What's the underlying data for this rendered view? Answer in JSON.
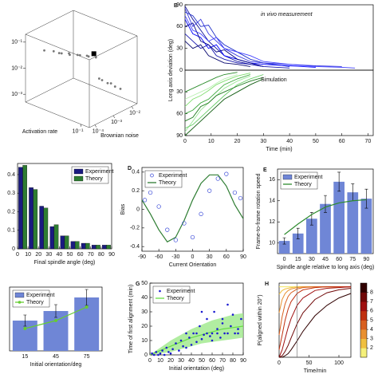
{
  "chart_data": [
    {
      "type": "scatter3d",
      "xlabel": "Activation rate",
      "ylabel": "Brownian noise",
      "xlim": [
        0.001,
        0.2
      ],
      "ylim": [
        5e-05,
        0.02
      ],
      "zlim": [
        0.0005,
        0.2
      ],
      "xticks": [
        {
          "value": 0.1,
          "label": "10⁻¹"
        }
      ],
      "yticks": [
        {
          "value": 0.0001,
          "label": "10⁻⁴"
        },
        {
          "value": 0.001,
          "label": "10⁻³"
        },
        {
          "value": 0.01,
          "label": "10⁻²"
        }
      ],
      "zticks": [
        {
          "value": 0.001,
          "label": "10⁻³"
        },
        {
          "value": 0.01,
          "label": "10⁻²"
        },
        {
          "value": 0.1,
          "label": "10⁻¹"
        }
      ],
      "series": [
        {
          "color": "#777777",
          "marker": "circle",
          "x": [
            0.003,
            0.005,
            0.008,
            0.012,
            0.02,
            0.03,
            0.005,
            0.008,
            0.012,
            0.02,
            0.03,
            0.03,
            0.05,
            0.08,
            0.1,
            0.05,
            0.08
          ],
          "y": [
            0.0001,
            0.00015,
            0.0002,
            0.0003,
            0.0005,
            0.0008,
            0.0003,
            0.0005,
            0.0008,
            0.0012,
            0.002,
            0.003,
            0.004,
            0.005,
            0.007,
            0.002,
            0.003
          ],
          "z": [
            0.06,
            0.06,
            0.055,
            0.05,
            0.05,
            0.045,
            0.04,
            0.04,
            0.035,
            0.035,
            0.03,
            0.004,
            0.003,
            0.0025,
            0.002,
            0.005,
            0.004
          ]
        },
        {
          "color": "#000000",
          "marker": "square",
          "x": [
            0.04
          ],
          "y": [
            0.001
          ],
          "z": [
            0.06
          ]
        }
      ]
    },
    {
      "type": "line",
      "panel": "B",
      "ylabel": "Long axis deviation (deg)",
      "annotation": "in vivo measurement",
      "x": [
        0,
        3,
        6,
        9,
        12,
        15,
        20,
        25,
        30,
        40,
        50,
        60,
        65
      ],
      "xlim": [
        0,
        72
      ],
      "ylim": [
        0,
        90
      ],
      "yticks": [
        0,
        30,
        60,
        90
      ],
      "series": [
        {
          "color": "#10109a",
          "values": [
            88,
            70,
            55,
            40,
            30,
            20,
            12,
            8,
            5,
            null,
            null,
            null,
            null
          ]
        },
        {
          "color": "#2030c8",
          "values": [
            80,
            75,
            60,
            62,
            45,
            35,
            25,
            15,
            10,
            5,
            null,
            null,
            null
          ]
        },
        {
          "color": "#0000ff",
          "values": [
            70,
            50,
            45,
            30,
            35,
            20,
            15,
            10,
            8,
            6,
            4,
            null,
            null
          ]
        },
        {
          "color": "#000080",
          "values": [
            60,
            65,
            40,
            35,
            25,
            28,
            15,
            10,
            5,
            null,
            null,
            null,
            null
          ]
        },
        {
          "color": "#3a3ae0",
          "values": [
            85,
            60,
            70,
            50,
            40,
            30,
            20,
            12,
            10,
            8,
            6,
            5,
            null
          ]
        },
        {
          "color": "#1818b0",
          "values": [
            50,
            40,
            30,
            35,
            20,
            15,
            10,
            8,
            5,
            3,
            null,
            null,
            null
          ]
        },
        {
          "color": "#4040ff",
          "values": [
            75,
            55,
            50,
            40,
            45,
            30,
            25,
            20,
            12,
            8,
            5,
            4,
            3
          ]
        },
        {
          "color": "#0a0a70",
          "values": [
            40,
            30,
            35,
            20,
            15,
            10,
            8,
            5,
            null,
            null,
            null,
            null,
            null
          ]
        }
      ]
    },
    {
      "type": "line",
      "xlabel": "Time (min)",
      "annotation": "Simulation",
      "x": [
        0,
        3,
        6,
        9,
        12,
        15,
        20,
        25,
        30,
        40,
        50,
        60,
        65
      ],
      "xlim": [
        0,
        72
      ],
      "ylim": [
        90,
        0
      ],
      "yticks": [
        30,
        60,
        90
      ],
      "xticks": [
        0,
        10,
        20,
        30,
        40,
        50,
        60,
        70
      ],
      "series": [
        {
          "color": "#9ee89a",
          "values": [
            85,
            70,
            55,
            45,
            35,
            25,
            15,
            8,
            null,
            null,
            null,
            null,
            null
          ]
        },
        {
          "color": "#66cc66",
          "values": [
            80,
            75,
            65,
            55,
            45,
            35,
            20,
            12,
            6,
            null,
            null,
            null,
            null
          ]
        },
        {
          "color": "#3aa83a",
          "values": [
            60,
            55,
            45,
            40,
            30,
            20,
            12,
            6,
            null,
            null,
            null,
            null,
            null
          ]
        },
        {
          "color": "#b8f0b0",
          "values": [
            40,
            35,
            30,
            25,
            18,
            12,
            6,
            null,
            null,
            null,
            null,
            null,
            null
          ]
        },
        {
          "color": "#1e7a1e",
          "values": [
            70,
            65,
            50,
            45,
            35,
            30,
            22,
            15,
            10,
            null,
            null,
            null,
            null
          ]
        },
        {
          "color": "#0f5a0f",
          "values": [
            90,
            80,
            70,
            60,
            50,
            40,
            30,
            20,
            12,
            null,
            null,
            null,
            null
          ]
        },
        {
          "color": "#80dd70",
          "values": [
            50,
            40,
            35,
            28,
            20,
            15,
            8,
            4,
            null,
            null,
            null,
            null,
            null
          ]
        },
        {
          "color": "#2c8c2c",
          "values": [
            30,
            25,
            20,
            15,
            10,
            6,
            3,
            null,
            null,
            null,
            null,
            null,
            null
          ]
        }
      ]
    },
    {
      "type": "grouped_bar",
      "xlabel": "Final spindle angle (deg)",
      "legend": "upper right",
      "x": [
        5,
        15,
        25,
        35,
        45,
        55,
        65,
        75,
        85
      ],
      "xlim": [
        0,
        90
      ],
      "xticks": [
        0,
        10,
        20,
        30,
        40,
        50,
        60,
        70,
        80,
        90
      ],
      "ylim": [
        0,
        0.46
      ],
      "yticks": [
        0,
        0.1,
        0.2,
        0.3,
        0.4
      ],
      "series": [
        {
          "name": "Experiment",
          "color": "#1a1a80",
          "values": [
            0.44,
            0.33,
            0.23,
            0.12,
            0.07,
            0.04,
            0.03,
            0.02,
            0.02
          ]
        },
        {
          "name": "Theory",
          "color": "#2e7d32",
          "values": [
            0.45,
            0.32,
            0.22,
            0.13,
            0.07,
            0.04,
            0.03,
            0.02,
            0.02
          ]
        }
      ]
    },
    {
      "type": "scatter_line",
      "panel": "D",
      "xlabel": "Current Orientation",
      "ylabel": "Bias",
      "legend": "upper left",
      "xlim": [
        -90,
        90
      ],
      "xticks": [
        -90,
        -60,
        -30,
        0,
        30,
        60,
        90
      ],
      "ylim": [
        -0.45,
        0.45
      ],
      "yticks": [
        -0.4,
        -0.2,
        0,
        0.2,
        0.4
      ],
      "series": [
        {
          "name": "Experiment",
          "color": "#3a4ad8",
          "x": [
            -85,
            -75,
            -60,
            -45,
            -30,
            -15,
            0,
            15,
            30,
            45,
            60,
            75,
            85
          ],
          "values": [
            0.1,
            0.18,
            0.03,
            -0.22,
            -0.33,
            -0.15,
            -0.3,
            -0.05,
            0.2,
            0.33,
            0.38,
            0.18,
            0.12
          ]
        },
        {
          "name": "Theory",
          "color": "#2e7d32",
          "x": [
            -90,
            -75,
            -60,
            -45,
            -30,
            -15,
            0,
            15,
            30,
            45,
            60,
            75,
            90
          ],
          "values": [
            0.1,
            -0.05,
            -0.22,
            -0.35,
            -0.3,
            -0.12,
            0.1,
            0.28,
            0.37,
            0.37,
            0.25,
            0.05,
            -0.1
          ]
        }
      ]
    },
    {
      "type": "bar_error_line",
      "panel": "E",
      "xlabel": "Spindle angle relative to long axis (deg)",
      "ylabel": "Frame-to-frame rotation speed",
      "legend": "upper left",
      "categories": [
        "0",
        "15",
        "30",
        "45",
        "60",
        "75",
        "90"
      ],
      "ylim": [
        9,
        17
      ],
      "yticks": [
        10,
        12,
        14,
        16
      ],
      "series": [
        {
          "name": "Experiment",
          "color": "#6f86d6",
          "values": [
            10.2,
            10.9,
            12.3,
            13.7,
            15.8,
            14.8,
            14.2
          ],
          "errors": [
            0.3,
            0.5,
            0.6,
            0.8,
            0.9,
            0.8,
            0.9
          ]
        },
        {
          "name": "Theory",
          "color": "#2e8b2e",
          "values": [
            10.8,
            11.8,
            12.7,
            13.4,
            13.8,
            14,
            14.1
          ]
        }
      ]
    },
    {
      "type": "bar_error_line",
      "xlabel": "Initial orientation/deg",
      "legend": "upper left",
      "categories": [
        "15",
        "45",
        "75"
      ],
      "ylim": [
        0,
        0.8
      ],
      "series": [
        {
          "name": "Experiment",
          "color": "#6f86d6",
          "values": [
            0.38,
            0.5,
            0.67
          ],
          "errors": [
            0.07,
            0.08,
            0.1
          ]
        },
        {
          "name": "Theory",
          "color": "#66cc33",
          "marker": "circle",
          "values": [
            0.28,
            0.38,
            0.55
          ]
        }
      ]
    },
    {
      "type": "scatter_band",
      "panel": "G",
      "xlabel": "Initial orientation (deg)",
      "ylabel": "Time of first alignment (min)",
      "legend": "upper left",
      "xlim": [
        0,
        90
      ],
      "xticks": [
        0,
        10,
        20,
        30,
        40,
        50,
        60,
        70,
        80,
        90
      ],
      "ylim": [
        0,
        50
      ],
      "yticks": [
        0,
        10,
        20,
        30,
        40,
        50
      ],
      "series": [
        {
          "name": "Experiment",
          "color": "#1a1ad0",
          "x": [
            2,
            4,
            6,
            8,
            10,
            12,
            14,
            16,
            18,
            20,
            22,
            25,
            28,
            30,
            32,
            35,
            38,
            40,
            42,
            45,
            48,
            50,
            52,
            55,
            58,
            60,
            62,
            65,
            68,
            70,
            72,
            75,
            78,
            80,
            82,
            85,
            88,
            35,
            45,
            55,
            65,
            75,
            85,
            30,
            50,
            70,
            60
          ],
          "values": [
            1,
            0,
            2,
            0,
            1,
            3,
            0,
            5,
            2,
            1,
            4,
            8,
            3,
            10,
            6,
            5,
            12,
            7,
            15,
            9,
            20,
            11,
            14,
            25,
            13,
            15,
            30,
            18,
            12,
            25,
            15,
            35,
            20,
            28,
            15,
            18,
            25,
            15,
            15,
            15,
            15,
            15,
            15,
            40,
            30,
            22,
            10
          ]
        },
        {
          "name": "Theory",
          "color": "#66dd44",
          "band_color": "#9ee88a",
          "x": [
            0,
            10,
            20,
            30,
            40,
            50,
            60,
            70,
            80,
            90
          ],
          "values": [
            0,
            3,
            6,
            9,
            12,
            14,
            16,
            18,
            19,
            20
          ],
          "lower": [
            0,
            1,
            2,
            4,
            6,
            8,
            9,
            10,
            11,
            12
          ],
          "upper": [
            0,
            5,
            10,
            14,
            18,
            21,
            24,
            26,
            28,
            29
          ]
        }
      ]
    },
    {
      "type": "curves",
      "panel": "H",
      "xlabel": "Time/min",
      "ylabel": "P(aligned within 20°)",
      "x": [
        0,
        5,
        10,
        15,
        20,
        30,
        40,
        60,
        80,
        100,
        120
      ],
      "xlim": [
        0,
        120
      ],
      "xticks": [
        0,
        50,
        100
      ],
      "ylim": [
        0,
        1
      ],
      "vline": 30,
      "colorbar": {
        "lim": [
          1,
          9
        ],
        "ticks": [
          2,
          3,
          4,
          5,
          6,
          7,
          8
        ],
        "colors": [
          "#f5f07a",
          "#f0c040",
          "#e89030",
          "#d86020",
          "#c03010",
          "#a01010",
          "#700808",
          "#300000"
        ]
      },
      "series": [
        {
          "color": "#f5e663",
          "values": [
            0.95,
            0.95,
            0.95,
            0.95,
            0.95,
            0.95,
            0.95,
            0.95,
            0.95,
            0.95,
            0.95
          ]
        },
        {
          "color": "#f0c040",
          "values": [
            0.85,
            0.9,
            0.92,
            0.93,
            0.94,
            0.95,
            0.95,
            0.95,
            0.95,
            0.95,
            0.95
          ]
        },
        {
          "color": "#e89030",
          "values": [
            0.6,
            0.78,
            0.86,
            0.9,
            0.92,
            0.94,
            0.95,
            0.95,
            0.95,
            0.95,
            0.95
          ]
        },
        {
          "color": "#d86020",
          "values": [
            0.3,
            0.55,
            0.72,
            0.82,
            0.87,
            0.92,
            0.94,
            0.95,
            0.95,
            0.95,
            0.95
          ]
        },
        {
          "color": "#c03010",
          "values": [
            0.1,
            0.3,
            0.5,
            0.65,
            0.75,
            0.86,
            0.91,
            0.94,
            0.95,
            0.95,
            0.95
          ]
        },
        {
          "color": "#a01010",
          "values": [
            0,
            0.1,
            0.25,
            0.4,
            0.52,
            0.7,
            0.8,
            0.9,
            0.93,
            0.94,
            0.95
          ]
        },
        {
          "color": "#700808",
          "values": [
            0,
            0.02,
            0.08,
            0.16,
            0.26,
            0.45,
            0.6,
            0.78,
            0.87,
            0.91,
            0.93
          ]
        },
        {
          "color": "#300000",
          "values": [
            0,
            0,
            0.02,
            0.05,
            0.1,
            0.22,
            0.35,
            0.56,
            0.7,
            0.8,
            0.86
          ]
        }
      ]
    }
  ]
}
